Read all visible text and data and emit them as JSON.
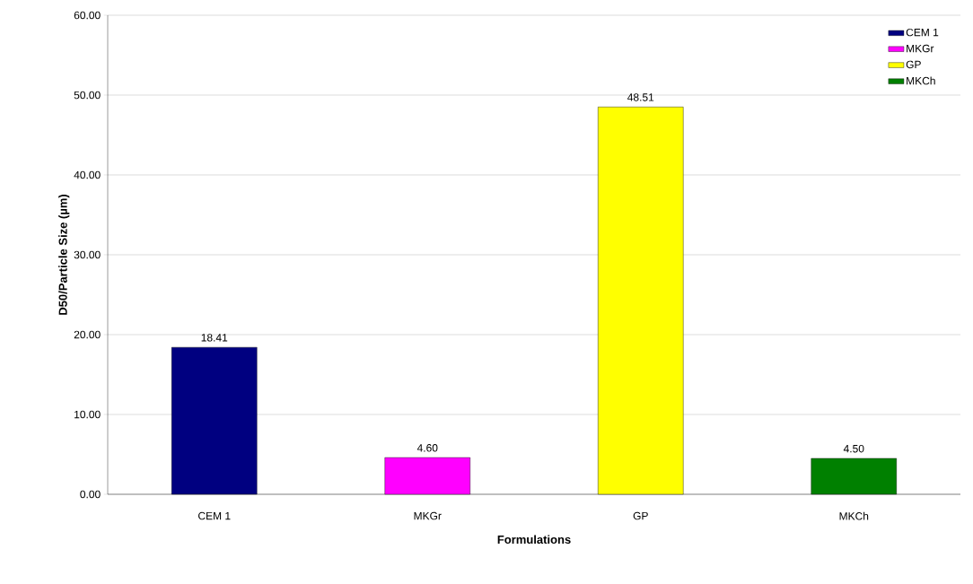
{
  "chart_data": {
    "type": "bar",
    "xlabel": "Formulations",
    "ylabel": "D50/Particle Size (µm)",
    "categories": [
      "CEM 1",
      "MKGr",
      "GP",
      "MKCh"
    ],
    "series": [
      {
        "name": "CEM 1",
        "color": "#000080",
        "values": [
          18.41,
          null,
          null,
          null
        ],
        "value_labels": [
          "18.41",
          null,
          null,
          null
        ]
      },
      {
        "name": "MKGr",
        "color": "#ff00ff",
        "values": [
          null,
          4.6,
          null,
          null
        ],
        "value_labels": [
          null,
          "4.60",
          null,
          null
        ]
      },
      {
        "name": "GP",
        "color": "#ffff00",
        "values": [
          null,
          null,
          48.51,
          null
        ],
        "value_labels": [
          null,
          null,
          "48.51",
          null
        ]
      },
      {
        "name": "MKCh",
        "color": "#008000",
        "values": [
          null,
          null,
          null,
          4.5
        ],
        "value_labels": [
          null,
          null,
          null,
          "4.50"
        ]
      }
    ],
    "ylim": [
      0,
      60
    ],
    "yticks": [
      {
        "value": 0,
        "label": "0.00"
      },
      {
        "value": 10,
        "label": "10.00"
      },
      {
        "value": 20,
        "label": "20.00"
      },
      {
        "value": 30,
        "label": "30.00"
      },
      {
        "value": 40,
        "label": "40.00"
      },
      {
        "value": 50,
        "label": "50.00"
      },
      {
        "value": 60,
        "label": "60.00"
      }
    ],
    "grid": "y",
    "legend": "top right"
  }
}
